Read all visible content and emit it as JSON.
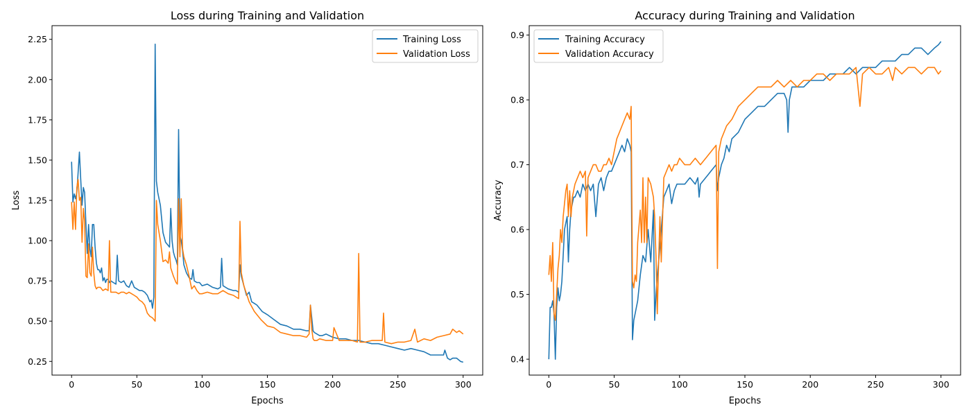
{
  "colors": {
    "training": "#1f77b4",
    "validation": "#ff7f0e"
  },
  "chart_data": [
    {
      "type": "line",
      "title": "Loss during Training and Validation",
      "xlabel": "Epochs",
      "ylabel": "Loss",
      "xlim": [
        -15,
        315
      ],
      "ylim": [
        0.165,
        2.335
      ],
      "xticks": [
        0,
        50,
        100,
        150,
        200,
        250,
        300
      ],
      "xtick_labels": [
        "0",
        "50",
        "100",
        "150",
        "200",
        "250",
        "300"
      ],
      "yticks": [
        0.25,
        0.5,
        0.75,
        1.0,
        1.25,
        1.5,
        1.75,
        2.0,
        2.25
      ],
      "ytick_labels": [
        "0.25",
        "0.50",
        "0.75",
        "1.00",
        "1.25",
        "1.50",
        "1.75",
        "2.00",
        "2.25"
      ],
      "legend": "top-right",
      "grid": false,
      "series": [
        {
          "name": "Training Loss",
          "color": "#1f77b4",
          "x": [
            0,
            1,
            2,
            3,
            4,
            5,
            6,
            7,
            8,
            9,
            10,
            11,
            12,
            13,
            14,
            15,
            16,
            17,
            18,
            19,
            20,
            21,
            22,
            23,
            24,
            25,
            26,
            27,
            28,
            29,
            30,
            32,
            34,
            35,
            36,
            38,
            40,
            42,
            44,
            46,
            48,
            50,
            52,
            54,
            56,
            58,
            59,
            60,
            61,
            62,
            63,
            64,
            65,
            66,
            68,
            70,
            72,
            74,
            75,
            76,
            77,
            78,
            79,
            80,
            81,
            82,
            83,
            84,
            85,
            86,
            88,
            90,
            92,
            93,
            94,
            96,
            98,
            100,
            104,
            108,
            112,
            114,
            115,
            116,
            118,
            120,
            124,
            126,
            128,
            129,
            130,
            132,
            134,
            136,
            138,
            140,
            142,
            144,
            146,
            148,
            150,
            155,
            160,
            165,
            170,
            175,
            180,
            182,
            183,
            184,
            185,
            186,
            188,
            190,
            192,
            195,
            200,
            205,
            210,
            215,
            220,
            225,
            230,
            235,
            240,
            245,
            250,
            255,
            260,
            265,
            270,
            275,
            280,
            285,
            286,
            288,
            290,
            292,
            295,
            298,
            300
          ],
          "values": [
            1.49,
            1.24,
            1.29,
            1.26,
            1.3,
            1.42,
            1.55,
            1.38,
            1.22,
            1.33,
            1.3,
            1.1,
            0.92,
            1.1,
            0.95,
            0.9,
            1.1,
            1.1,
            0.96,
            0.86,
            0.82,
            0.82,
            0.8,
            0.83,
            0.75,
            0.77,
            0.74,
            0.76,
            0.76,
            0.74,
            0.75,
            0.74,
            0.73,
            0.91,
            0.75,
            0.74,
            0.75,
            0.72,
            0.71,
            0.75,
            0.71,
            0.7,
            0.69,
            0.69,
            0.68,
            0.66,
            0.64,
            0.62,
            0.63,
            0.58,
            0.65,
            2.22,
            1.37,
            1.3,
            1.22,
            1.05,
            0.99,
            0.97,
            0.96,
            1.2,
            1.0,
            0.93,
            0.9,
            0.88,
            0.85,
            1.69,
            1.03,
            1.0,
            0.94,
            0.85,
            0.8,
            0.77,
            0.76,
            0.82,
            0.75,
            0.74,
            0.74,
            0.72,
            0.73,
            0.71,
            0.7,
            0.71,
            0.89,
            0.72,
            0.71,
            0.7,
            0.69,
            0.69,
            0.68,
            0.85,
            0.78,
            0.72,
            0.66,
            0.68,
            0.62,
            0.61,
            0.6,
            0.58,
            0.56,
            0.55,
            0.54,
            0.51,
            0.48,
            0.47,
            0.45,
            0.45,
            0.44,
            0.44,
            0.6,
            0.52,
            0.44,
            0.43,
            0.42,
            0.41,
            0.41,
            0.42,
            0.4,
            0.39,
            0.39,
            0.38,
            0.38,
            0.37,
            0.36,
            0.36,
            0.35,
            0.34,
            0.33,
            0.32,
            0.33,
            0.32,
            0.31,
            0.29,
            0.29,
            0.29,
            0.32,
            0.27,
            0.26,
            0.27,
            0.27,
            0.25,
            0.245
          ]
        },
        {
          "name": "Validation Loss",
          "color": "#ff7f0e",
          "x": [
            0,
            1,
            2,
            3,
            4,
            5,
            6,
            7,
            8,
            9,
            10,
            11,
            12,
            13,
            14,
            15,
            16,
            17,
            18,
            19,
            20,
            22,
            24,
            26,
            28,
            29,
            30,
            32,
            34,
            36,
            38,
            40,
            42,
            44,
            46,
            48,
            50,
            52,
            54,
            56,
            58,
            60,
            62,
            63,
            64,
            65,
            66,
            68,
            70,
            72,
            74,
            75,
            76,
            78,
            80,
            81,
            82,
            83,
            84,
            85,
            86,
            88,
            90,
            92,
            94,
            96,
            98,
            100,
            104,
            108,
            112,
            116,
            120,
            124,
            126,
            128,
            129,
            130,
            132,
            136,
            140,
            145,
            150,
            155,
            160,
            165,
            170,
            175,
            180,
            182,
            183,
            184,
            185,
            186,
            188,
            190,
            195,
            200,
            201,
            205,
            210,
            215,
            219,
            220,
            221,
            225,
            230,
            235,
            238,
            239,
            240,
            245,
            250,
            255,
            260,
            263,
            265,
            270,
            275,
            280,
            285,
            290,
            292,
            295,
            297,
            300
          ],
          "values": [
            1.24,
            1.07,
            1.24,
            1.07,
            1.33,
            1.38,
            1.25,
            1.27,
            0.99,
            1.2,
            1.12,
            0.78,
            0.77,
            0.98,
            0.8,
            0.78,
            0.96,
            0.8,
            0.72,
            0.7,
            0.71,
            0.71,
            0.69,
            0.7,
            0.69,
            1.0,
            0.68,
            0.68,
            0.68,
            0.67,
            0.68,
            0.68,
            0.67,
            0.68,
            0.67,
            0.66,
            0.65,
            0.63,
            0.62,
            0.6,
            0.55,
            0.53,
            0.52,
            0.51,
            0.5,
            1.25,
            1.1,
            1.0,
            0.87,
            0.88,
            0.86,
            0.93,
            0.83,
            0.78,
            0.74,
            0.73,
            1.26,
            0.9,
            1.26,
            0.95,
            0.9,
            0.85,
            0.78,
            0.7,
            0.72,
            0.69,
            0.67,
            0.67,
            0.68,
            0.67,
            0.67,
            0.69,
            0.67,
            0.66,
            0.65,
            0.64,
            1.12,
            0.8,
            0.72,
            0.62,
            0.56,
            0.51,
            0.47,
            0.46,
            0.43,
            0.42,
            0.41,
            0.41,
            0.4,
            0.42,
            0.6,
            0.45,
            0.39,
            0.38,
            0.38,
            0.39,
            0.38,
            0.38,
            0.46,
            0.38,
            0.38,
            0.38,
            0.37,
            0.92,
            0.37,
            0.37,
            0.38,
            0.38,
            0.38,
            0.55,
            0.37,
            0.36,
            0.37,
            0.37,
            0.38,
            0.45,
            0.37,
            0.39,
            0.38,
            0.4,
            0.41,
            0.42,
            0.45,
            0.43,
            0.44,
            0.42
          ]
        }
      ]
    },
    {
      "type": "line",
      "title": "Accuracy during Training and Validation",
      "xlabel": "Epochs",
      "ylabel": "Accuracy",
      "xlim": [
        -15,
        315
      ],
      "ylim": [
        0.3755,
        0.9145
      ],
      "xticks": [
        0,
        50,
        100,
        150,
        200,
        250,
        300
      ],
      "xtick_labels": [
        "0",
        "50",
        "100",
        "150",
        "200",
        "250",
        "300"
      ],
      "yticks": [
        0.4,
        0.5,
        0.6,
        0.7,
        0.8,
        0.9
      ],
      "ytick_labels": [
        "0.4",
        "0.5",
        "0.6",
        "0.7",
        "0.8",
        "0.9"
      ],
      "legend": "top-left",
      "grid": false,
      "series": [
        {
          "name": "Training Accuracy",
          "color": "#1f77b4",
          "x": [
            0,
            1,
            2,
            3,
            4,
            5,
            6,
            7,
            8,
            9,
            10,
            11,
            12,
            13,
            14,
            15,
            16,
            17,
            18,
            19,
            20,
            22,
            24,
            26,
            28,
            30,
            32,
            34,
            36,
            38,
            40,
            42,
            44,
            46,
            48,
            50,
            52,
            54,
            56,
            58,
            60,
            62,
            63,
            64,
            65,
            66,
            68,
            70,
            72,
            74,
            76,
            78,
            80,
            81,
            82,
            83,
            84,
            86,
            88,
            90,
            92,
            94,
            96,
            98,
            100,
            104,
            108,
            112,
            114,
            115,
            116,
            120,
            124,
            128,
            129,
            130,
            132,
            134,
            136,
            138,
            140,
            145,
            150,
            155,
            160,
            165,
            170,
            175,
            180,
            182,
            183,
            184,
            185,
            186,
            190,
            195,
            200,
            205,
            210,
            215,
            220,
            225,
            230,
            235,
            240,
            245,
            250,
            255,
            260,
            265,
            270,
            275,
            280,
            285,
            290,
            295,
            298,
            300
          ],
          "values": [
            0.4,
            0.48,
            0.48,
            0.49,
            0.47,
            0.4,
            0.48,
            0.51,
            0.49,
            0.5,
            0.52,
            0.56,
            0.6,
            0.61,
            0.62,
            0.55,
            0.6,
            0.63,
            0.64,
            0.65,
            0.65,
            0.66,
            0.65,
            0.67,
            0.66,
            0.67,
            0.66,
            0.67,
            0.62,
            0.67,
            0.68,
            0.66,
            0.68,
            0.69,
            0.69,
            0.7,
            0.71,
            0.72,
            0.73,
            0.72,
            0.74,
            0.73,
            0.72,
            0.43,
            0.46,
            0.47,
            0.49,
            0.53,
            0.56,
            0.55,
            0.6,
            0.55,
            0.63,
            0.46,
            0.5,
            0.53,
            0.55,
            0.6,
            0.65,
            0.66,
            0.67,
            0.64,
            0.66,
            0.67,
            0.67,
            0.67,
            0.68,
            0.67,
            0.68,
            0.65,
            0.67,
            0.68,
            0.69,
            0.7,
            0.66,
            0.68,
            0.7,
            0.71,
            0.73,
            0.72,
            0.74,
            0.75,
            0.77,
            0.78,
            0.79,
            0.79,
            0.8,
            0.81,
            0.81,
            0.8,
            0.75,
            0.8,
            0.81,
            0.82,
            0.82,
            0.82,
            0.83,
            0.83,
            0.83,
            0.84,
            0.84,
            0.84,
            0.85,
            0.84,
            0.85,
            0.85,
            0.85,
            0.86,
            0.86,
            0.86,
            0.87,
            0.87,
            0.88,
            0.88,
            0.87,
            0.88,
            0.885,
            0.89
          ]
        },
        {
          "name": "Validation Accuracy",
          "color": "#ff7f0e",
          "x": [
            0,
            1,
            2,
            3,
            4,
            5,
            6,
            7,
            8,
            9,
            10,
            11,
            12,
            13,
            14,
            15,
            16,
            17,
            18,
            19,
            20,
            22,
            24,
            26,
            28,
            29,
            30,
            32,
            34,
            36,
            38,
            40,
            42,
            44,
            46,
            48,
            50,
            52,
            54,
            56,
            58,
            60,
            62,
            63,
            64,
            65,
            66,
            67,
            68,
            70,
            71,
            72,
            73,
            74,
            75,
            76,
            78,
            80,
            81,
            82,
            83,
            84,
            85,
            86,
            88,
            90,
            92,
            94,
            96,
            98,
            100,
            104,
            108,
            112,
            116,
            120,
            124,
            128,
            129,
            130,
            132,
            136,
            140,
            145,
            150,
            155,
            160,
            165,
            170,
            175,
            180,
            185,
            190,
            195,
            200,
            205,
            210,
            215,
            220,
            225,
            230,
            235,
            238,
            240,
            245,
            250,
            255,
            260,
            263,
            265,
            270,
            275,
            280,
            285,
            290,
            295,
            298,
            300
          ],
          "values": [
            0.53,
            0.56,
            0.52,
            0.58,
            0.47,
            0.46,
            0.5,
            0.54,
            0.56,
            0.6,
            0.58,
            0.62,
            0.64,
            0.66,
            0.67,
            0.62,
            0.66,
            0.62,
            0.65,
            0.66,
            0.67,
            0.68,
            0.69,
            0.68,
            0.69,
            0.59,
            0.68,
            0.69,
            0.7,
            0.7,
            0.69,
            0.69,
            0.7,
            0.7,
            0.71,
            0.7,
            0.72,
            0.74,
            0.75,
            0.76,
            0.77,
            0.78,
            0.77,
            0.79,
            0.52,
            0.51,
            0.53,
            0.52,
            0.58,
            0.63,
            0.58,
            0.68,
            0.58,
            0.65,
            0.58,
            0.68,
            0.67,
            0.65,
            0.62,
            0.56,
            0.47,
            0.55,
            0.62,
            0.55,
            0.68,
            0.69,
            0.7,
            0.69,
            0.7,
            0.7,
            0.71,
            0.7,
            0.7,
            0.71,
            0.7,
            0.71,
            0.72,
            0.73,
            0.54,
            0.72,
            0.74,
            0.76,
            0.77,
            0.79,
            0.8,
            0.81,
            0.82,
            0.82,
            0.82,
            0.83,
            0.82,
            0.83,
            0.82,
            0.83,
            0.83,
            0.84,
            0.84,
            0.83,
            0.84,
            0.84,
            0.84,
            0.85,
            0.79,
            0.84,
            0.85,
            0.84,
            0.84,
            0.85,
            0.83,
            0.85,
            0.84,
            0.85,
            0.85,
            0.84,
            0.85,
            0.85,
            0.84,
            0.845
          ]
        }
      ]
    }
  ]
}
